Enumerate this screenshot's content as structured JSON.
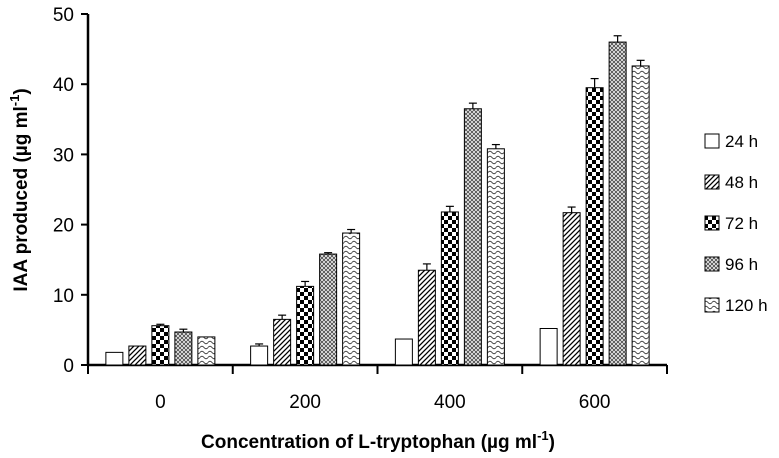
{
  "chart_data": {
    "type": "bar",
    "title": "",
    "xlabel": "Concentration of L-tryptophan (µg ml",
    "xlabel_sup": "-1",
    "xlabel_end": ")",
    "ylabel": "IAA produced (µg ml",
    "ylabel_sup": "-1",
    "ylabel_end": ")",
    "categories": [
      "0",
      "200",
      "400",
      "600"
    ],
    "ylim": [
      0,
      50
    ],
    "yticks": [
      "0",
      "10",
      "20",
      "30",
      "40",
      "50"
    ],
    "ytick_values": [
      0,
      10,
      20,
      30,
      40,
      50
    ],
    "legend_position": "right",
    "series": [
      {
        "name": "24 h",
        "pattern": "blank",
        "values": [
          1.8,
          2.7,
          3.7,
          5.2
        ],
        "errors": [
          0,
          0.3,
          0,
          0
        ]
      },
      {
        "name": "48 h",
        "pattern": "diagonal",
        "values": [
          2.7,
          6.5,
          13.5,
          21.7
        ],
        "errors": [
          0,
          0.6,
          0.9,
          0.8
        ]
      },
      {
        "name": "72 h",
        "pattern": "checker",
        "values": [
          5.6,
          11.2,
          21.8,
          39.5
        ],
        "errors": [
          0.2,
          0.7,
          0.8,
          1.3
        ]
      },
      {
        "name": "96 h",
        "pattern": "crosshatch",
        "values": [
          4.7,
          15.8,
          36.5,
          46.0
        ],
        "errors": [
          0.4,
          0.2,
          0.8,
          0.9
        ]
      },
      {
        "name": "120 h",
        "pattern": "wavy",
        "values": [
          4.0,
          18.8,
          30.8,
          42.6
        ],
        "errors": [
          0,
          0.5,
          0.6,
          0.8
        ]
      }
    ]
  }
}
